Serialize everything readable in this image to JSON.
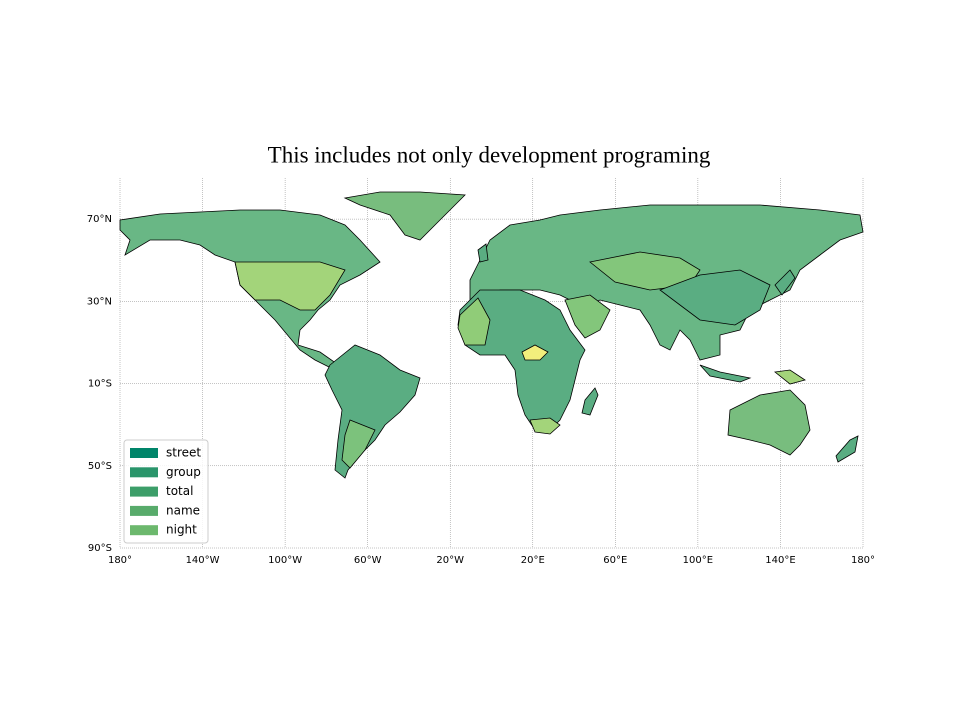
{
  "chart_data": {
    "type": "map",
    "title": "This includes not only development programing",
    "series": [
      {
        "name": "street",
        "color": "#00856a"
      },
      {
        "name": "group",
        "color": "#2a956b"
      },
      {
        "name": "total",
        "color": "#3c9e69"
      },
      {
        "name": "name",
        "color": "#58ab6b"
      },
      {
        "name": "night",
        "color": "#6cb86d"
      }
    ],
    "legend": "lower left",
    "xlim": [
      -180,
      180
    ],
    "ylim": [
      -90,
      90
    ],
    "xticks": [
      {
        "value": -180,
        "label": "180°"
      },
      {
        "value": -140,
        "label": "140°W"
      },
      {
        "value": -100,
        "label": "100°W"
      },
      {
        "value": -60,
        "label": "60°W"
      },
      {
        "value": -20,
        "label": "20°W"
      },
      {
        "value": 20,
        "label": "20°E"
      },
      {
        "value": 60,
        "label": "60°E"
      },
      {
        "value": 100,
        "label": "100°E"
      },
      {
        "value": 140,
        "label": "140°E"
      },
      {
        "value": 180,
        "label": "180°"
      }
    ],
    "yticks": [
      {
        "value": 70,
        "label": "70°N"
      },
      {
        "value": 30,
        "label": "30°N"
      },
      {
        "value": -10,
        "label": "10°S"
      },
      {
        "value": -50,
        "label": "50°S"
      },
      {
        "value": -90,
        "label": "90°S"
      }
    ],
    "grid": true
  }
}
